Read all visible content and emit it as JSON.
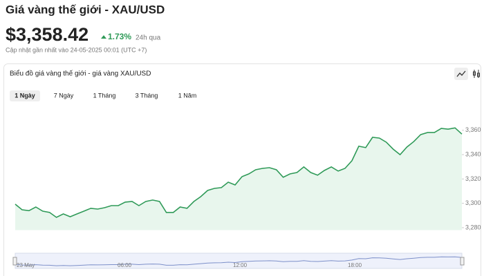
{
  "header": {
    "title": "Giá vàng thế giới - XAU/USD",
    "price": "$3,358.42",
    "change": "1.73%",
    "period": "24h qua",
    "updated": "Cập nhật gần nhất vào 24-05-2025 00:01 (UTC +7)"
  },
  "card": {
    "title": "Biểu đồ giá vàng thế giới - giá vàng XAU/USD",
    "tabs": [
      "1 Ngày",
      "7 Ngày",
      "1 Tháng",
      "3 Tháng",
      "1 Năm"
    ]
  },
  "navigator": {
    "labels": [
      "23 May",
      "06:00",
      "12:00",
      "18:00"
    ]
  },
  "chart_data": {
    "type": "area",
    "color": "#2f9a58",
    "fill": "#e8f6ed",
    "values": [
      3299.3,
      3294.7,
      3294,
      3297,
      3293.6,
      3292.5,
      3288.5,
      3291.3,
      3289,
      3291.3,
      3293.6,
      3295.9,
      3295.3,
      3296.4,
      3298.1,
      3298.1,
      3301,
      3301.5,
      3298.1,
      3301.5,
      3302.7,
      3301.5,
      3292.5,
      3292.5,
      3297,
      3295.9,
      3301.5,
      3305.5,
      3310.6,
      3312.3,
      3312.9,
      3317.4,
      3315.1,
      3321.9,
      3324.2,
      3327.6,
      3328.7,
      3329.3,
      3327.6,
      3321.4,
      3324.2,
      3325.3,
      3329.9,
      3325.3,
      3323.1,
      3327,
      3329.9,
      3326.5,
      3328.7,
      3335,
      3346.9,
      3345.8,
      3354.2,
      3353.6,
      3350.2,
      3344.5,
      3340,
      3346.2,
      3350.7,
      3356.4,
      3358.1,
      3358.1,
      3361.5,
      3360.9,
      3362,
      3356.9
    ],
    "ylim": [
      3278,
      3380
    ],
    "yticks": [
      {
        "value": 3280,
        "label": "3,280"
      },
      {
        "value": 3300,
        "label": "3,300"
      },
      {
        "value": 3320,
        "label": "3,320"
      },
      {
        "value": 3340,
        "label": "3,340"
      },
      {
        "value": 3360,
        "label": "3,360"
      }
    ]
  }
}
